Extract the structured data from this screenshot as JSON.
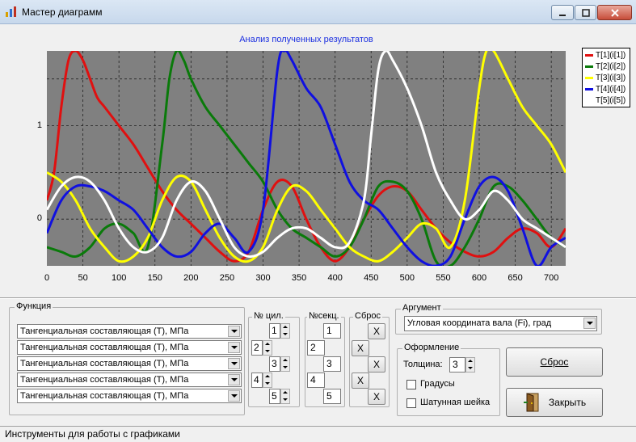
{
  "window": {
    "title": "Мастер диаграмм"
  },
  "chart_data": {
    "type": "line",
    "title": "Анализ полученных результатов",
    "xlabel": "",
    "ylabel": "",
    "xlim": [
      0,
      720
    ],
    "ylim": [
      -0.5,
      1.8
    ],
    "xticks": [
      "0",
      "50",
      "100",
      "150",
      "200",
      "250",
      "300",
      "350",
      "400",
      "450",
      "500",
      "550",
      "600",
      "650",
      "700"
    ],
    "yticks": [
      "1",
      "0"
    ],
    "grid": true,
    "legend_position": "right",
    "series": [
      {
        "name": "T[1](i[1])",
        "color": "#e01010",
        "x": [
          0,
          10,
          20,
          30,
          40,
          50,
          60,
          70,
          80,
          100,
          120,
          140,
          160,
          180,
          200,
          220,
          240,
          260,
          280,
          300,
          320,
          340,
          360,
          380,
          400,
          420,
          440,
          460,
          480,
          500,
          520,
          540,
          560,
          580,
          600,
          620,
          640,
          660,
          680,
          700,
          720
        ],
        "y": [
          0.2,
          0.5,
          1.2,
          1.7,
          1.8,
          1.7,
          1.5,
          1.3,
          1.2,
          1.0,
          0.8,
          0.55,
          0.3,
          0.1,
          -0.05,
          -0.2,
          -0.35,
          -0.45,
          -0.35,
          0.1,
          0.4,
          0.35,
          0.0,
          -0.3,
          -0.45,
          -0.3,
          0.0,
          0.25,
          0.35,
          0.3,
          0.1,
          -0.1,
          -0.25,
          -0.35,
          -0.4,
          -0.35,
          -0.2,
          -0.1,
          -0.15,
          -0.3,
          -0.1
        ]
      },
      {
        "name": "T[2](i[2])",
        "color": "#0a7a0a",
        "x": [
          0,
          20,
          40,
          60,
          80,
          100,
          120,
          140,
          160,
          170,
          180,
          190,
          200,
          220,
          240,
          260,
          280,
          300,
          320,
          340,
          360,
          380,
          400,
          420,
          440,
          460,
          480,
          500,
          520,
          540,
          560,
          580,
          600,
          620,
          640,
          660,
          680,
          700,
          720
        ],
        "y": [
          -0.3,
          -0.35,
          -0.4,
          -0.3,
          -0.1,
          -0.05,
          -0.15,
          -0.3,
          0.8,
          1.5,
          1.8,
          1.7,
          1.5,
          1.2,
          1.0,
          0.8,
          0.6,
          0.4,
          0.1,
          -0.1,
          -0.2,
          -0.3,
          -0.4,
          -0.3,
          0.0,
          0.35,
          0.4,
          0.3,
          0.0,
          -0.45,
          -0.5,
          -0.3,
          0.0,
          0.35,
          0.35,
          0.2,
          0.0,
          -0.2,
          -0.3
        ]
      },
      {
        "name": "T[3](i[3])",
        "color": "#ffff00",
        "x": [
          0,
          20,
          40,
          60,
          80,
          100,
          120,
          140,
          160,
          180,
          200,
          220,
          240,
          260,
          280,
          300,
          320,
          340,
          360,
          380,
          400,
          420,
          440,
          460,
          480,
          500,
          520,
          540,
          560,
          580,
          600,
          610,
          620,
          640,
          660,
          680,
          700,
          720
        ],
        "y": [
          0.5,
          0.4,
          0.2,
          -0.1,
          -0.3,
          -0.45,
          -0.4,
          -0.2,
          0.2,
          0.45,
          0.4,
          0.1,
          -0.2,
          -0.4,
          -0.45,
          -0.3,
          0.1,
          0.35,
          0.3,
          0.1,
          -0.1,
          -0.3,
          -0.4,
          -0.45,
          -0.35,
          -0.2,
          -0.05,
          -0.1,
          -0.3,
          0.2,
          1.4,
          1.8,
          1.8,
          1.5,
          1.2,
          1.0,
          0.8,
          0.5
        ]
      },
      {
        "name": "T[4](i[4])",
        "color": "#1010e0",
        "x": [
          0,
          20,
          40,
          60,
          80,
          100,
          120,
          140,
          160,
          180,
          200,
          220,
          240,
          260,
          280,
          300,
          320,
          330,
          340,
          360,
          380,
          400,
          420,
          440,
          460,
          480,
          500,
          520,
          540,
          560,
          580,
          600,
          620,
          640,
          660,
          680,
          700,
          720
        ],
        "y": [
          -0.15,
          0.2,
          0.35,
          0.35,
          0.3,
          0.2,
          0.1,
          -0.1,
          -0.3,
          -0.4,
          -0.35,
          -0.15,
          -0.05,
          -0.2,
          -0.35,
          0.1,
          1.6,
          1.8,
          1.7,
          1.4,
          1.2,
          0.8,
          0.4,
          0.2,
          0.1,
          -0.1,
          -0.3,
          -0.45,
          -0.5,
          -0.4,
          0.0,
          0.35,
          0.45,
          0.3,
          -0.1,
          -0.5,
          -0.3,
          -0.2
        ]
      },
      {
        "name": "T[5](i[5])",
        "color": "#ffffff",
        "x": [
          0,
          20,
          40,
          60,
          80,
          100,
          120,
          140,
          160,
          180,
          200,
          220,
          240,
          260,
          280,
          300,
          320,
          340,
          360,
          380,
          400,
          420,
          440,
          450,
          460,
          470,
          480,
          500,
          520,
          540,
          560,
          580,
          600,
          620,
          640,
          660,
          680,
          700,
          720
        ],
        "y": [
          0.1,
          0.35,
          0.45,
          0.4,
          0.2,
          -0.1,
          -0.3,
          -0.35,
          -0.2,
          0.2,
          0.4,
          0.3,
          0.0,
          -0.3,
          -0.4,
          -0.35,
          -0.2,
          -0.1,
          -0.1,
          -0.2,
          -0.3,
          -0.25,
          0.2,
          0.9,
          1.6,
          1.8,
          1.7,
          1.4,
          1.0,
          0.5,
          0.2,
          0.0,
          0.1,
          0.3,
          0.2,
          0.0,
          -0.1,
          -0.2,
          -0.3
        ]
      }
    ]
  },
  "function_group": {
    "label": "Функция",
    "combos": [
      "Тангенциальная составляющая (T), МПа",
      "Тангенциальная составляющая (T), МПа",
      "Тангенциальная составляющая (T), МПа",
      "Тангенциальная составляющая (T), МПа",
      "Тангенциальная составляющая (T), МПа"
    ]
  },
  "cyl_group": {
    "label": "№ цил.",
    "values": [
      "1",
      "2",
      "3",
      "4",
      "5"
    ]
  },
  "sec_group": {
    "label": "№секц.",
    "values": [
      "1",
      "2",
      "3",
      "4",
      "5"
    ]
  },
  "reset_group": {
    "label": "Сброс",
    "x_label": "X"
  },
  "argument_group": {
    "label": "Аргумент",
    "value": "Угловая координата вала (Fi), град"
  },
  "design_group": {
    "label": "Оформление",
    "thickness_label": "Толщина:",
    "thickness_value": "3",
    "degrees_label": "Градусы",
    "rod_label": "Шатунная шейка"
  },
  "buttons": {
    "reset": "Сброс",
    "close": "Закрыть"
  },
  "status": {
    "text": "Инструменты для работы  с графиками"
  }
}
